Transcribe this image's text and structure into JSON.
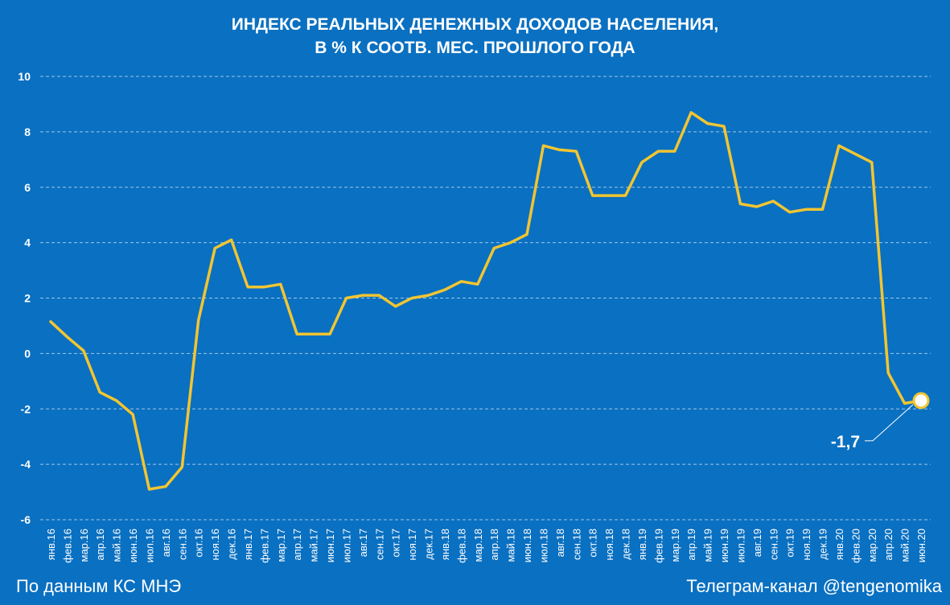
{
  "chart_data": {
    "type": "line",
    "title_lines": [
      "ИНДЕКС РЕАЛЬНЫХ ДЕНЕЖНЫХ ДОХОДОВ НАСЕЛЕНИЯ,",
      "В % К СООТВ. МЕС. ПРОШЛОГО ГОДА"
    ],
    "categories": [
      "янв.16",
      "фев.16",
      "мар.16",
      "апр.16",
      "май.16",
      "июн.16",
      "июл.16",
      "авг.16",
      "сен.16",
      "окт.16",
      "ноя.16",
      "дек.16",
      "янв.17",
      "фев.17",
      "мар.17",
      "апр.17",
      "май.17",
      "июн.17",
      "июл.17",
      "авг.17",
      "сен.17",
      "окт.17",
      "ноя.17",
      "дек.17",
      "янв.18",
      "фев.18",
      "мар.18",
      "апр.18",
      "май.18",
      "июн.18",
      "июл.18",
      "авг.18",
      "сен.18",
      "окт.18",
      "ноя.18",
      "дек.18",
      "янв.19",
      "фев.19",
      "мар.19",
      "апр.19",
      "май.19",
      "июн.19",
      "июл.19",
      "авг.19",
      "сен.19",
      "окт.19",
      "ноя.19",
      "дек.19",
      "янв.20",
      "фев.20",
      "мар.20",
      "апр.20",
      "май.20",
      "июн.20"
    ],
    "series": [
      {
        "values": [
          1.15,
          0.6,
          0.1,
          -1.4,
          -1.7,
          -2.2,
          -4.9,
          -4.8,
          -4.1,
          1.2,
          3.8,
          4.1,
          2.4,
          2.4,
          2.5,
          0.7,
          0.7,
          0.7,
          2.0,
          2.1,
          2.1,
          1.7,
          2.0,
          2.1,
          2.3,
          2.6,
          2.5,
          3.8,
          4.0,
          4.3,
          7.5,
          7.35,
          7.3,
          5.7,
          5.7,
          5.7,
          6.9,
          7.3,
          7.3,
          8.7,
          8.3,
          8.2,
          5.4,
          5.3,
          5.5,
          5.1,
          5.2,
          5.2,
          7.5,
          7.2,
          6.9,
          -0.7,
          -1.8,
          -1.7
        ],
        "color": "#f2c531"
      }
    ],
    "ylim": [
      -6,
      10
    ],
    "yticks": [
      10,
      8,
      6,
      4,
      2,
      0,
      -2,
      -4,
      -6
    ],
    "grid": true,
    "annotation": {
      "label": "-1,7",
      "category": "июн.20",
      "value": -1.7
    }
  },
  "footer": {
    "source": "По данным КС МНЭ",
    "channel": "Телеграм-канал @tengenomika"
  },
  "colors": {
    "background": "#0a70c1",
    "line": "#f2c531",
    "grid": "#9fc6e8",
    "text": "#ffffff"
  }
}
